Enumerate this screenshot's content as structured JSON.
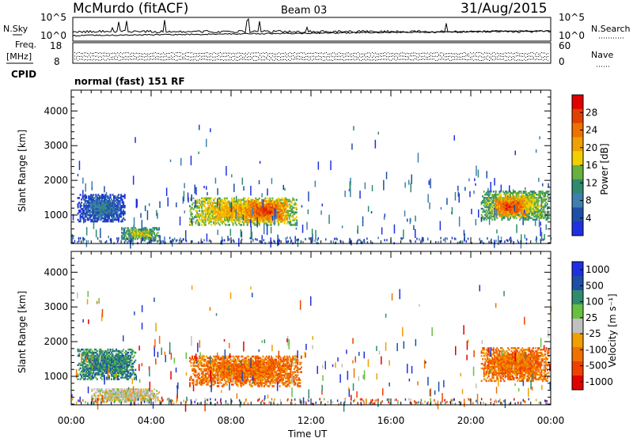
{
  "header": {
    "station": "McMurdo (fitACF)",
    "beam": "Beam 03",
    "date": "31/Aug/2015"
  },
  "top_panel": {
    "left_label": "N.Sky",
    "right_label": "N.Search",
    "left_ticks": [
      "10^5",
      "10^0"
    ],
    "right_ticks": [
      "10^5",
      "10^0"
    ]
  },
  "freq_panel": {
    "left_label_1": "Freq.",
    "left_label_2": "[MHz]",
    "left_ticks": [
      "18",
      "8"
    ],
    "right_label": "Nave",
    "right_ticks": [
      "60",
      "0"
    ]
  },
  "cpid": {
    "label": "CPID",
    "value": "normal (fast) 151 RF"
  },
  "colors": {
    "power": [
      "#2030e0",
      "#1e4fa6",
      "#3f7fb0",
      "#2f8a6e",
      "#68b040",
      "#f0d000",
      "#f0a000",
      "#f07000",
      "#e04000",
      "#e00000"
    ],
    "velocity": [
      "#e00000",
      "#f04000",
      "#f07000",
      "#f0a000",
      "#c0c0c0",
      "#68c040",
      "#2f8a6e",
      "#1e4fa6",
      "#2030e0"
    ]
  },
  "chart_data": [
    {
      "type": "heatmap",
      "name": "power",
      "ylabel": "Slant Range [km]",
      "xlabel": "",
      "x_range": [
        0,
        24
      ],
      "ylim": [
        180,
        4600
      ],
      "yticks": [
        "1000",
        "2000",
        "3000",
        "4000"
      ],
      "colorbar": {
        "label": "Power [dB]",
        "range": [
          0,
          32
        ],
        "ticks": [
          "4",
          "8",
          "12",
          "16",
          "20",
          "24",
          "28"
        ]
      },
      "regions": [
        {
          "t0": 0.3,
          "t1": 2.7,
          "r0": 800,
          "r1": 1600,
          "level": 10
        },
        {
          "t0": 2.5,
          "t1": 4.4,
          "r0": 250,
          "r1": 650,
          "level": 18
        },
        {
          "t0": 5.9,
          "t1": 11.3,
          "r0": 700,
          "r1": 1500,
          "level": 22
        },
        {
          "t0": 8.6,
          "t1": 10.8,
          "r0": 800,
          "r1": 1400,
          "level": 28
        },
        {
          "t0": 20.5,
          "t1": 23.9,
          "r0": 850,
          "r1": 1700,
          "level": 20
        },
        {
          "t0": 21.1,
          "t1": 22.8,
          "r0": 950,
          "r1": 1500,
          "level": 28
        }
      ]
    },
    {
      "type": "heatmap",
      "name": "velocity",
      "ylabel": "Slant Range [km]",
      "xlabel": "Time UT",
      "x_range": [
        0,
        24
      ],
      "ylim": [
        180,
        4600
      ],
      "yticks": [
        "1000",
        "2000",
        "3000",
        "4000"
      ],
      "xticks": [
        "00:00",
        "04:00",
        "08:00",
        "12:00",
        "16:00",
        "20:00",
        "00:00"
      ],
      "colorbar": {
        "label": "Velocity [m s⁻¹]",
        "ticks": [
          "1000",
          "500",
          "100",
          "25",
          "-25",
          "-100",
          "-500",
          "-1000"
        ]
      },
      "regions": [
        {
          "t0": 0.3,
          "t1": 3.2,
          "r0": 900,
          "r1": 1800,
          "level": 6
        },
        {
          "t0": 1.0,
          "t1": 4.4,
          "r0": 250,
          "r1": 650,
          "level": 4
        },
        {
          "t0": 5.9,
          "t1": 11.5,
          "r0": 700,
          "r1": 1600,
          "level": 2
        },
        {
          "t0": 20.5,
          "t1": 23.9,
          "r0": 850,
          "r1": 1800,
          "level": 2
        }
      ]
    }
  ]
}
